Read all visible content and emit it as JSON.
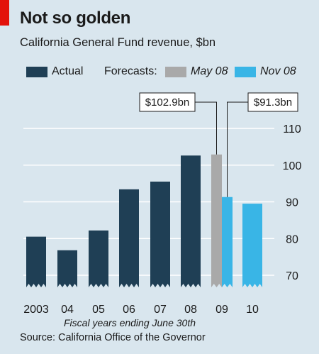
{
  "header": {
    "title": "Not so golden",
    "subtitle": "California General Fund revenue, $bn"
  },
  "legend": {
    "actual": "Actual",
    "forecasts": "Forecasts:",
    "may": "May 08",
    "nov": "Nov 08"
  },
  "footer": {
    "source": "Source: California Office of the Governor"
  },
  "colors": {
    "background": "#d9e6ee",
    "actual": "#1f3f55",
    "may08": "#a9a9a9",
    "nov08": "#39b5e6",
    "brand_red": "#e3120b"
  },
  "chart_data": {
    "type": "bar",
    "title": "Not so golden",
    "subtitle": "California General Fund revenue, $bn",
    "categories": [
      "2003",
      "04",
      "05",
      "06",
      "07",
      "08",
      "09",
      "10"
    ],
    "series": [
      {
        "name": "Actual",
        "values": [
          80.5,
          76.8,
          82.2,
          93.4,
          95.5,
          102.6,
          null,
          null
        ]
      },
      {
        "name": "May 08",
        "values": [
          null,
          null,
          null,
          null,
          null,
          null,
          102.9,
          null
        ]
      },
      {
        "name": "Nov 08",
        "values": [
          null,
          null,
          null,
          null,
          null,
          null,
          91.3,
          89.5
        ]
      }
    ],
    "annotations": [
      {
        "text": "$102.9bn",
        "category": "09",
        "series": "May 08"
      },
      {
        "text": "$91.3bn",
        "category": "09",
        "series": "Nov 08"
      }
    ],
    "xlabel": "Fiscal years ending June 30th",
    "ylabel": "",
    "yticks": [
      70,
      80,
      90,
      100,
      110
    ],
    "ylim": [
      63,
      115
    ],
    "y_axis_side": "right",
    "grid": true,
    "axis_break": true
  }
}
